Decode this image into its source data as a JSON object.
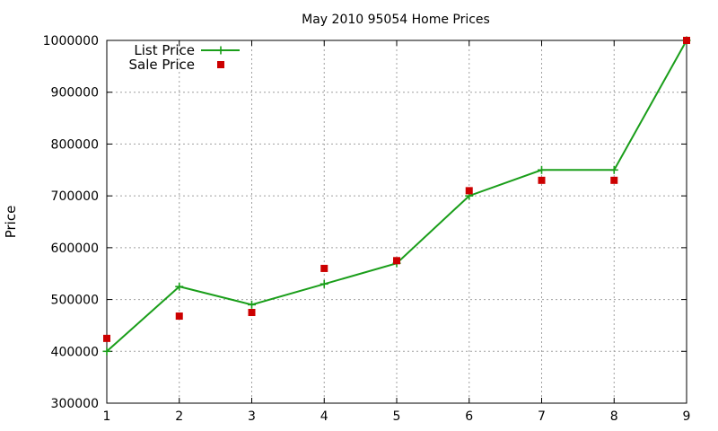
{
  "chart_data": {
    "type": "line",
    "title": "May 2010 95054 Home Prices",
    "xlabel": "",
    "ylabel": "Price",
    "x": [
      1,
      2,
      3,
      4,
      5,
      6,
      7,
      8,
      9
    ],
    "xlim": [
      1,
      9
    ],
    "ylim": [
      300000,
      1000000
    ],
    "x_ticks": [
      "1",
      "2",
      "3",
      "4",
      "5",
      "6",
      "7",
      "8",
      "9"
    ],
    "y_ticks": [
      "300000",
      "400000",
      "500000",
      "600000",
      "700000",
      "800000",
      "900000",
      "1000000"
    ],
    "grid": true,
    "legend_position": "top-left",
    "series": [
      {
        "name": "List Price",
        "style": "lines+points",
        "marker": "plus",
        "color": "#1a9e1a",
        "values": [
          400000,
          525000,
          490000,
          530000,
          570000,
          700000,
          750000,
          750000,
          1000000
        ]
      },
      {
        "name": "Sale Price",
        "style": "points",
        "marker": "square",
        "color": "#cc0000",
        "values": [
          425000,
          468000,
          475000,
          560000,
          575000,
          710000,
          730000,
          730000,
          1000000
        ]
      }
    ]
  }
}
